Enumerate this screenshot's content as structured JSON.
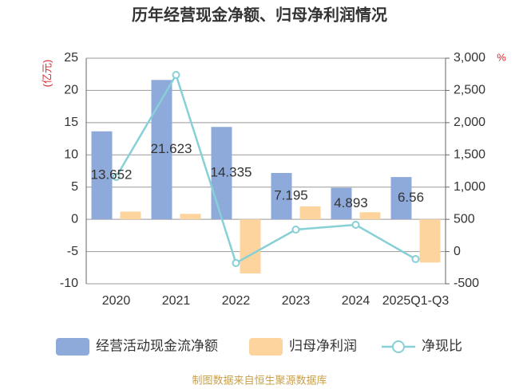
{
  "chart_data": {
    "type": "bar",
    "title": "历年经营现金净额、归母净利润情况",
    "y_label": "(亿元)",
    "y2_label": "%",
    "categories": [
      "2020",
      "2021",
      "2022",
      "2023",
      "2024",
      "2025Q1-Q3"
    ],
    "series": [
      {
        "name": "经营活动现金流净额",
        "type": "bar",
        "color": "#8eaadb",
        "values": [
          13.652,
          21.623,
          14.335,
          7.195,
          4.893,
          6.56
        ],
        "value_labels": [
          "13.652",
          "21.623",
          "14.335",
          "7.195",
          "4.893",
          "6.56"
        ]
      },
      {
        "name": "归母净利润",
        "type": "bar",
        "color": "#fdd49e",
        "values": [
          1.2,
          0.85,
          -8.4,
          2.0,
          1.1,
          -6.7
        ]
      },
      {
        "name": "净现比",
        "type": "line",
        "axis": "y2",
        "color": "#86d0d6",
        "values": [
          1157,
          2740,
          -178,
          341,
          415,
          -117
        ]
      }
    ],
    "ylim": [
      -10,
      25
    ],
    "yticks": [
      -10,
      -5,
      0,
      5,
      10,
      15,
      20,
      25
    ],
    "y2lim": [
      -500,
      3000
    ],
    "y2ticks": [
      -500,
      0,
      500,
      {
        "value": 1000,
        "label": "1,000"
      },
      {
        "value": 1500,
        "label": "1,500"
      },
      {
        "value": 2000,
        "label": "2,000"
      },
      {
        "value": 2500,
        "label": "2,500"
      },
      {
        "value": 3000,
        "label": "3,000"
      }
    ],
    "grid": true,
    "source": "制图数据来自恒生聚源数据库"
  }
}
